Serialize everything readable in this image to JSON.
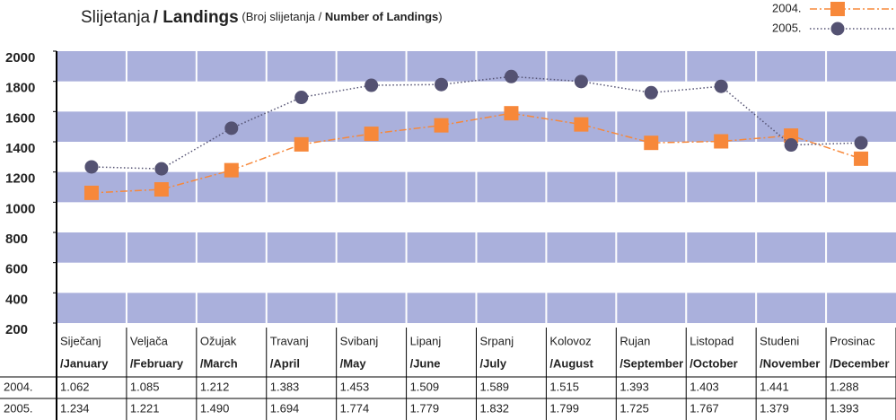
{
  "chart_data": {
    "type": "line",
    "title": [
      "Slijetanja",
      "/ Landings",
      "(Broj slijetanja /",
      "Number of Landings",
      ")"
    ],
    "categories": [
      "Siječanj",
      "Veljača",
      "Ožujak",
      "Travanj",
      "Svibanj",
      "Lipanj",
      "Srpanj",
      "Kolovoz",
      "Rujan",
      "Listopad",
      "Studeni",
      "Prosinac"
    ],
    "categories_en": [
      "/January",
      "/February",
      "/March",
      "/April",
      "/May",
      "/June",
      "/July",
      "/August",
      "/September",
      "/October",
      "/November",
      "/December"
    ],
    "series": [
      {
        "name": "2004.",
        "color": "#f7883a",
        "marker": "square",
        "values": [
          1062,
          1085,
          1212,
          1383,
          1453,
          1509,
          1589,
          1515,
          1393,
          1403,
          1441,
          1288
        ],
        "value_labels": [
          "1.062",
          "1.085",
          "1.212",
          "1.383",
          "1.453",
          "1.509",
          "1.589",
          "1.515",
          "1.393",
          "1.403",
          "1.441",
          "1.288"
        ]
      },
      {
        "name": "2005.",
        "color": "#545272",
        "marker": "circle",
        "values": [
          1234,
          1221,
          1490,
          1694,
          1774,
          1779,
          1832,
          1799,
          1725,
          1767,
          1379,
          1393
        ],
        "value_labels": [
          "1.234",
          "1.221",
          "1.490",
          "1.694",
          "1.774",
          "1.779",
          "1.832",
          "1.799",
          "1.725",
          "1.767",
          "1.379",
          "1.393"
        ]
      }
    ],
    "ylim": [
      200,
      2000
    ],
    "yticks": [
      200,
      400,
      600,
      800,
      1000,
      1200,
      1400,
      1600,
      1800,
      2000
    ],
    "band_color": "#aab0dc",
    "legend": "top-right"
  }
}
